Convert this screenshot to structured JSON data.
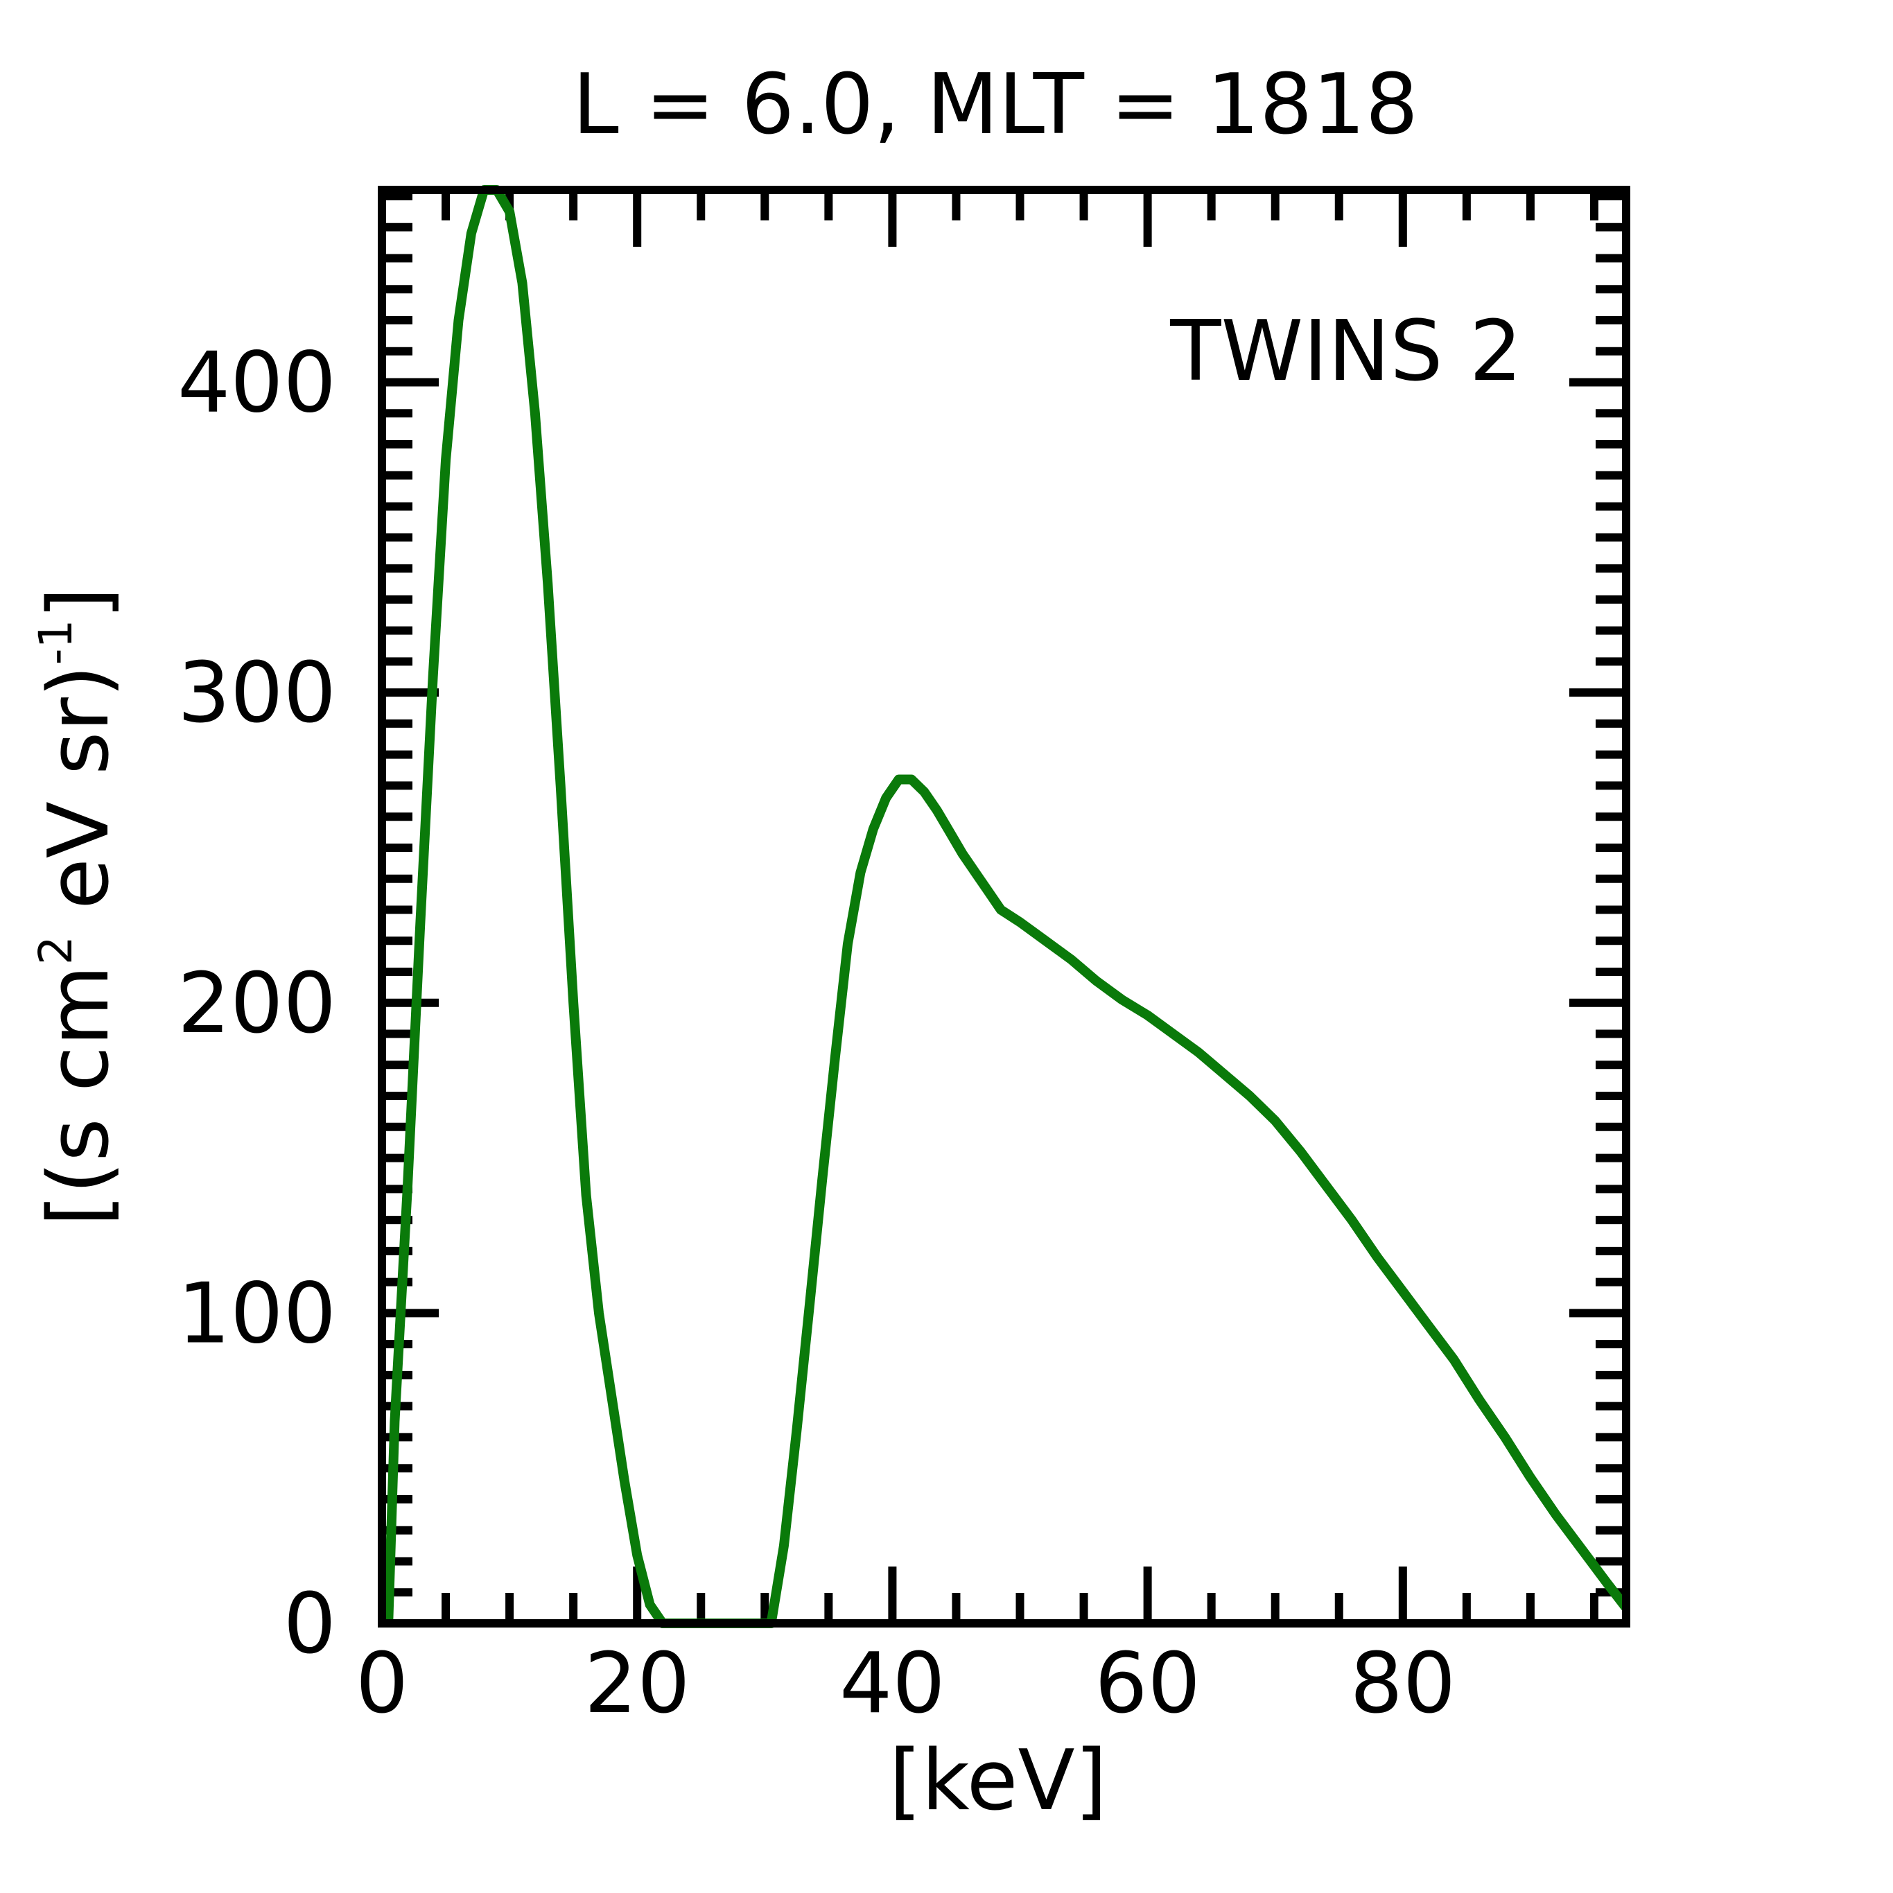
{
  "colors": {
    "series": "#0a7a0a",
    "axis": "#000000",
    "background": "#ffffff"
  },
  "chart_data": {
    "type": "line",
    "title": "L =  6.0, MLT = 1818",
    "xlabel": "[keV]",
    "ylabel": {
      "open": "[(s cm",
      "sup1": "2",
      "mid": " eV sr)",
      "sup2": "-1",
      "close": "]"
    },
    "xlim": [
      0,
      97.5
    ],
    "ylim": [
      0,
      462
    ],
    "xticks": [
      0,
      20,
      40,
      60,
      80
    ],
    "yticks": [
      0,
      100,
      200,
      300,
      400
    ],
    "xtick_labels": [
      "0",
      "20",
      "40",
      "60",
      "80"
    ],
    "ytick_labels": [
      "0",
      "100",
      "200",
      "300",
      "400"
    ],
    "x_minor_step": 5,
    "y_minor_step": 10,
    "grid": false,
    "annotation": "TWINS 2",
    "series": [
      {
        "name": "TWINS 2",
        "x": [
          0.5,
          1,
          2,
          3,
          4,
          5,
          6,
          7,
          8,
          9,
          10,
          11,
          12,
          13,
          14,
          15,
          16,
          17,
          18,
          19,
          20,
          21,
          22,
          23,
          24,
          25,
          25.6,
          30.5,
          31.5,
          32.5,
          33.5,
          34.5,
          35.5,
          36.5,
          37.5,
          38.5,
          39.5,
          40.5,
          41.5,
          42.5,
          43.5,
          44.5,
          45.5,
          46.5,
          47.5,
          48.5,
          50,
          52,
          54,
          56,
          58,
          60,
          62,
          64,
          66,
          68,
          70,
          72,
          74,
          76,
          78,
          80,
          82,
          84,
          86,
          88,
          90,
          92,
          94,
          96,
          97.5
        ],
        "y": [
          0,
          65,
          140,
          225,
          305,
          375,
          420,
          448,
          462,
          462,
          455,
          432,
          390,
          335,
          270,
          200,
          138,
          100,
          73,
          46,
          22,
          6,
          0,
          0,
          0,
          0,
          0,
          0,
          25,
          62,
          102,
          143,
          182,
          219,
          242,
          256,
          266,
          272,
          272,
          268,
          262,
          255,
          248,
          242,
          236,
          230,
          226,
          220,
          214,
          207,
          201,
          196,
          190,
          184,
          177,
          170,
          162,
          152,
          141,
          130,
          118,
          107,
          96,
          85,
          72,
          60,
          47,
          35,
          24,
          13,
          5
        ]
      }
    ]
  }
}
